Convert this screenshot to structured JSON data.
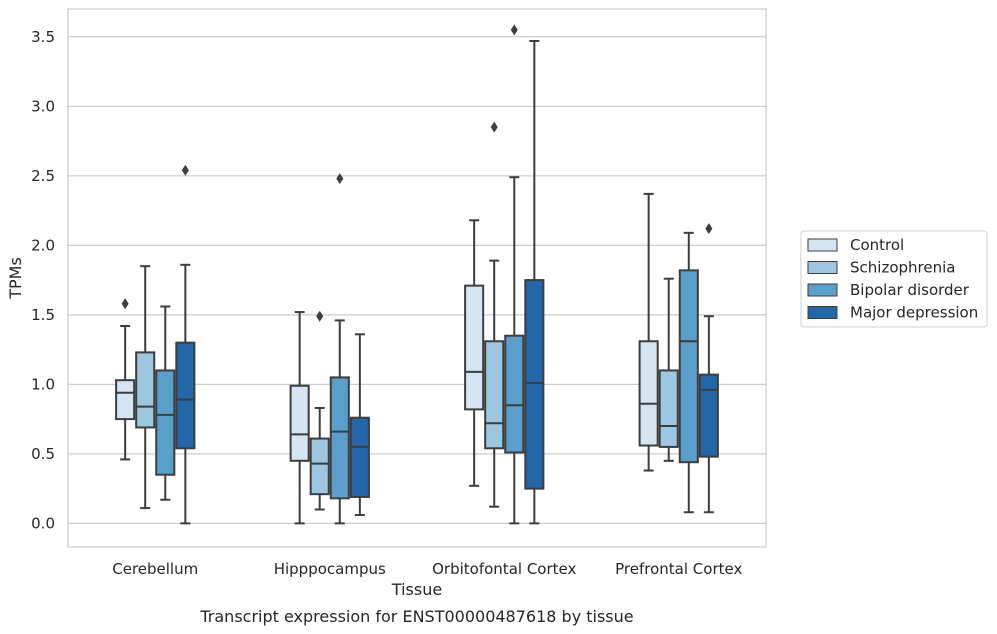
{
  "chart_data": {
    "type": "box",
    "title": "",
    "caption": "Transcript expression for ENST00000487618 by tissue",
    "xlabel": "Tissue",
    "ylabel": "TPMs",
    "ylim": [
      -0.17,
      3.7
    ],
    "yticks": [
      "0.0",
      "0.5",
      "1.0",
      "1.5",
      "2.0",
      "2.5",
      "3.0",
      "3.5"
    ],
    "grid": true,
    "legend_position": "right",
    "categories": [
      "Cerebellum",
      "Hipppocampus",
      "Orbitofontal Cortex",
      "Prefrontal Cortex"
    ],
    "series": [
      {
        "name": "Control",
        "color": "#d6e5f4",
        "boxes": [
          {
            "whisker_low": 0.46,
            "q1": 0.75,
            "median": 0.94,
            "q3": 1.03,
            "whisker_high": 1.42,
            "outliers": [
              1.58
            ]
          },
          {
            "whisker_low": 0.0,
            "q1": 0.45,
            "median": 0.64,
            "q3": 0.99,
            "whisker_high": 1.52,
            "outliers": []
          },
          {
            "whisker_low": 0.27,
            "q1": 0.82,
            "median": 1.09,
            "q3": 1.71,
            "whisker_high": 2.18,
            "outliers": []
          },
          {
            "whisker_low": 0.38,
            "q1": 0.56,
            "median": 0.86,
            "q3": 1.31,
            "whisker_high": 2.37,
            "outliers": []
          }
        ]
      },
      {
        "name": "Schizophrenia",
        "color": "#9dc6e0",
        "boxes": [
          {
            "whisker_low": 0.11,
            "q1": 0.69,
            "median": 0.84,
            "q3": 1.23,
            "whisker_high": 1.85,
            "outliers": []
          },
          {
            "whisker_low": 0.1,
            "q1": 0.21,
            "median": 0.43,
            "q3": 0.61,
            "whisker_high": 0.83,
            "outliers": [
              1.49
            ]
          },
          {
            "whisker_low": 0.12,
            "q1": 0.54,
            "median": 0.72,
            "q3": 1.31,
            "whisker_high": 1.89,
            "outliers": [
              2.85
            ]
          },
          {
            "whisker_low": 0.45,
            "q1": 0.55,
            "median": 0.7,
            "q3": 1.1,
            "whisker_high": 1.76,
            "outliers": []
          }
        ]
      },
      {
        "name": "Bipolar disorder",
        "color": "#5a9ecb",
        "boxes": [
          {
            "whisker_low": 0.17,
            "q1": 0.35,
            "median": 0.78,
            "q3": 1.1,
            "whisker_high": 1.56,
            "outliers": []
          },
          {
            "whisker_low": 0.0,
            "q1": 0.18,
            "median": 0.66,
            "q3": 1.05,
            "whisker_high": 1.46,
            "outliers": [
              2.48
            ]
          },
          {
            "whisker_low": 0.0,
            "q1": 0.51,
            "median": 0.85,
            "q3": 1.35,
            "whisker_high": 2.49,
            "outliers": [
              3.55
            ]
          },
          {
            "whisker_low": 0.08,
            "q1": 0.44,
            "median": 1.31,
            "q3": 1.82,
            "whisker_high": 2.09,
            "outliers": []
          }
        ]
      },
      {
        "name": "Major depression",
        "color": "#2366a9",
        "boxes": [
          {
            "whisker_low": 0.0,
            "q1": 0.54,
            "median": 0.89,
            "q3": 1.3,
            "whisker_high": 1.86,
            "outliers": [
              2.54
            ]
          },
          {
            "whisker_low": 0.06,
            "q1": 0.19,
            "median": 0.55,
            "q3": 0.76,
            "whisker_high": 1.36,
            "outliers": []
          },
          {
            "whisker_low": 0.0,
            "q1": 0.25,
            "median": 1.01,
            "q3": 1.75,
            "whisker_high": 3.47,
            "outliers": []
          },
          {
            "whisker_low": 0.08,
            "q1": 0.48,
            "median": 0.96,
            "q3": 1.07,
            "whisker_high": 1.49,
            "outliers": [
              2.12
            ]
          }
        ]
      }
    ]
  }
}
